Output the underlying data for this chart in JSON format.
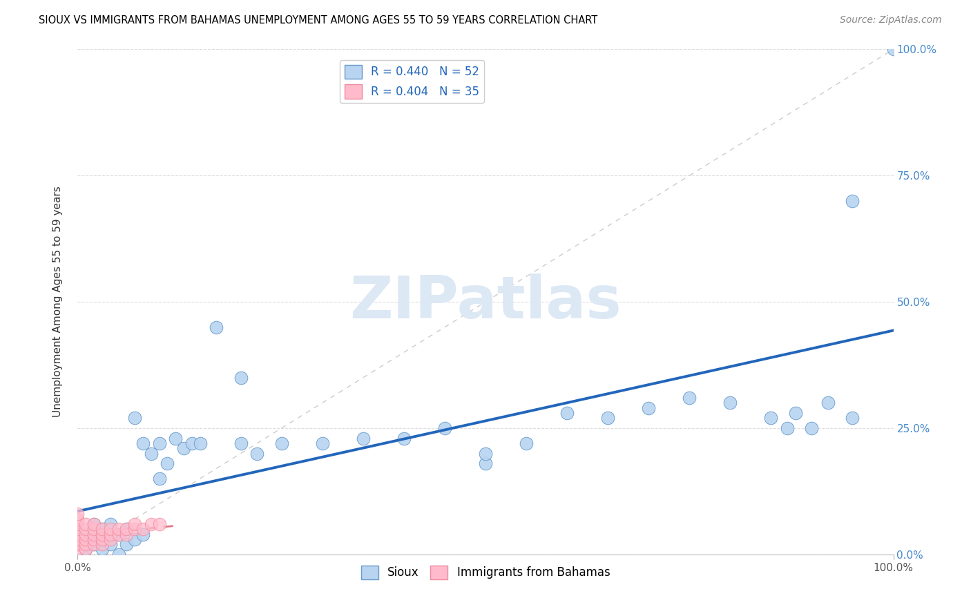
{
  "title": "SIOUX VS IMMIGRANTS FROM BAHAMAS UNEMPLOYMENT AMONG AGES 55 TO 59 YEARS CORRELATION CHART",
  "source": "Source: ZipAtlas.com",
  "ylabel": "Unemployment Among Ages 55 to 59 years",
  "xlim": [
    0,
    1
  ],
  "ylim": [
    0,
    1
  ],
  "yticks": [
    0.0,
    0.25,
    0.5,
    0.75,
    1.0
  ],
  "yticklabels": [
    "0.0%",
    "25.0%",
    "50.0%",
    "75.0%",
    "100.0%"
  ],
  "xtick_positions": [
    0.0,
    1.0
  ],
  "xticklabels": [
    "0.0%",
    "100.0%"
  ],
  "sioux_color": "#b8d4f0",
  "sioux_edge_color": "#6699cc",
  "bahamas_color": "#ffbbcc",
  "bahamas_edge_color": "#ee8899",
  "sioux_line_color": "#2266bb",
  "bahamas_line_color": "#dd7788",
  "ref_line_color": "#cccccc",
  "grid_color": "#dddddd",
  "legend_R_sioux": "R = 0.440",
  "legend_N_sioux": "N = 52",
  "legend_R_bahamas": "R = 0.404",
  "legend_N_bahamas": "N = 35",
  "watermark": "ZIPatlas",
  "sioux_x": [
    0.0,
    0.01,
    0.01,
    0.02,
    0.02,
    0.02,
    0.03,
    0.03,
    0.03,
    0.04,
    0.04,
    0.05,
    0.05,
    0.06,
    0.06,
    0.07,
    0.07,
    0.08,
    0.08,
    0.09,
    0.1,
    0.1,
    0.11,
    0.12,
    0.13,
    0.14,
    0.15,
    0.17,
    0.2,
    0.2,
    0.22,
    0.25,
    0.3,
    0.35,
    0.4,
    0.45,
    0.5,
    0.5,
    0.55,
    0.6,
    0.65,
    0.7,
    0.75,
    0.8,
    0.85,
    0.87,
    0.88,
    0.9,
    0.92,
    0.95,
    0.95,
    1.0
  ],
  "sioux_y": [
    0.02,
    0.01,
    0.03,
    0.02,
    0.04,
    0.06,
    0.01,
    0.03,
    0.05,
    0.02,
    0.06,
    0.0,
    0.04,
    0.02,
    0.05,
    0.27,
    0.03,
    0.22,
    0.04,
    0.2,
    0.15,
    0.22,
    0.18,
    0.23,
    0.21,
    0.22,
    0.22,
    0.45,
    0.35,
    0.22,
    0.2,
    0.22,
    0.22,
    0.23,
    0.23,
    0.25,
    0.18,
    0.2,
    0.22,
    0.28,
    0.27,
    0.29,
    0.31,
    0.3,
    0.27,
    0.25,
    0.28,
    0.25,
    0.3,
    0.27,
    0.7,
    1.0
  ],
  "bahamas_x": [
    0.0,
    0.0,
    0.0,
    0.0,
    0.0,
    0.0,
    0.0,
    0.0,
    0.01,
    0.01,
    0.01,
    0.01,
    0.01,
    0.01,
    0.02,
    0.02,
    0.02,
    0.02,
    0.02,
    0.03,
    0.03,
    0.03,
    0.03,
    0.04,
    0.04,
    0.04,
    0.05,
    0.05,
    0.06,
    0.06,
    0.07,
    0.07,
    0.08,
    0.09,
    0.1
  ],
  "bahamas_y": [
    0.01,
    0.02,
    0.03,
    0.04,
    0.05,
    0.06,
    0.07,
    0.08,
    0.01,
    0.02,
    0.03,
    0.04,
    0.05,
    0.06,
    0.02,
    0.03,
    0.04,
    0.05,
    0.06,
    0.02,
    0.03,
    0.04,
    0.05,
    0.03,
    0.04,
    0.05,
    0.04,
    0.05,
    0.04,
    0.05,
    0.05,
    0.06,
    0.05,
    0.06,
    0.06
  ],
  "marker_size": 180,
  "title_fontsize": 10.5,
  "axis_label_fontsize": 11,
  "tick_fontsize": 11,
  "legend_fontsize": 12
}
